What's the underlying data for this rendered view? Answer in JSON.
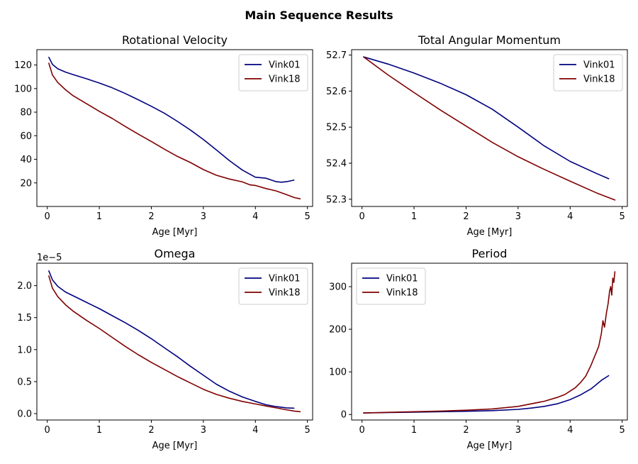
{
  "suptitle": "Main Sequence Results",
  "colors": {
    "Vink01": "#00007f",
    "Vink18": "#7f0000"
  },
  "chart_data": [
    {
      "type": "line",
      "title": "Rotational Velocity",
      "xlabel": "Age [Myr]",
      "ylabel": "",
      "xlim": [
        -0.2,
        5.1
      ],
      "ylim": [
        0,
        133
      ],
      "xticks": [
        0,
        1,
        2,
        3,
        4,
        5
      ],
      "yticks": [
        20,
        40,
        60,
        80,
        100,
        120
      ],
      "ytick_labels": [
        "20",
        "40",
        "60",
        "80",
        "100",
        "120"
      ],
      "offset_text": "",
      "legend_loc": "upper right",
      "series": [
        {
          "name": "Vink01",
          "x": [
            0.03,
            0.1,
            0.2,
            0.35,
            0.5,
            0.75,
            1.0,
            1.25,
            1.5,
            1.75,
            2.0,
            2.25,
            2.5,
            2.75,
            3.0,
            3.25,
            3.5,
            3.75,
            4.0,
            4.2,
            4.4,
            4.5,
            4.6,
            4.74
          ],
          "y": [
            126.5,
            120.5,
            116.8,
            114,
            111.8,
            108.4,
            104.7,
            100.6,
            95.8,
            90.5,
            85,
            79.1,
            72.2,
            64.9,
            56.8,
            48,
            38.9,
            30.9,
            24.8,
            24,
            21,
            20.6,
            21,
            22.3
          ]
        },
        {
          "name": "Vink18",
          "x": [
            0.03,
            0.1,
            0.2,
            0.35,
            0.5,
            0.75,
            1.0,
            1.25,
            1.5,
            1.75,
            2.0,
            2.25,
            2.5,
            2.75,
            3.0,
            3.25,
            3.5,
            3.75,
            3.9,
            4.0,
            4.2,
            4.4,
            4.6,
            4.75,
            4.86
          ],
          "y": [
            121.5,
            111.5,
            105.2,
            99,
            93.8,
            87.3,
            80.7,
            74.6,
            67.8,
            61.3,
            55.1,
            48.6,
            42.5,
            37.3,
            31.3,
            26.5,
            23.3,
            20.8,
            18.3,
            17.8,
            15.2,
            13.2,
            10,
            7.5,
            6.5
          ]
        }
      ]
    },
    {
      "type": "line",
      "title": "Total Angular Momentum",
      "xlabel": "Age [Myr]",
      "ylabel": "",
      "xlim": [
        -0.2,
        5.1
      ],
      "ylim": [
        52.28,
        52.715
      ],
      "xticks": [
        0,
        1,
        2,
        3,
        4,
        5
      ],
      "yticks": [
        52.3,
        52.4,
        52.5,
        52.6,
        52.7
      ],
      "ytick_labels": [
        "52.3",
        "52.4",
        "52.5",
        "52.6",
        "52.7"
      ],
      "offset_text": "",
      "legend_loc": "upper right",
      "series": [
        {
          "name": "Vink01",
          "x": [
            0.03,
            0.5,
            1.0,
            1.5,
            2.0,
            2.5,
            3.0,
            3.5,
            4.0,
            4.5,
            4.74
          ],
          "y": [
            52.695,
            52.675,
            52.65,
            52.622,
            52.59,
            52.55,
            52.5,
            52.448,
            52.405,
            52.372,
            52.357
          ]
        },
        {
          "name": "Vink18",
          "x": [
            0.03,
            0.5,
            1.0,
            1.5,
            2.0,
            2.5,
            3.0,
            3.5,
            4.0,
            4.5,
            4.86
          ],
          "y": [
            52.695,
            52.645,
            52.596,
            52.548,
            52.503,
            52.458,
            52.418,
            52.383,
            52.35,
            52.318,
            52.298
          ]
        }
      ]
    },
    {
      "type": "line",
      "title": "Omega",
      "xlabel": "Age [Myr]",
      "ylabel": "",
      "xlim": [
        -0.2,
        5.1
      ],
      "ylim": [
        -0.1,
        2.35
      ],
      "xticks": [
        0,
        1,
        2,
        3,
        4,
        5
      ],
      "yticks": [
        0.0,
        0.5,
        1.0,
        1.5,
        2.0
      ],
      "ytick_labels": [
        "0.0",
        "0.5",
        "1.0",
        "1.5",
        "2.0"
      ],
      "offset_text": "1e−5",
      "legend_loc": "upper right",
      "series": [
        {
          "name": "Vink01",
          "x": [
            0.03,
            0.1,
            0.2,
            0.35,
            0.5,
            0.75,
            1.0,
            1.25,
            1.5,
            1.75,
            2.0,
            2.25,
            2.5,
            2.75,
            3.0,
            3.25,
            3.5,
            3.75,
            4.0,
            4.2,
            4.4,
            4.6,
            4.74
          ],
          "y": [
            2.23,
            2.09,
            1.99,
            1.9,
            1.84,
            1.74,
            1.64,
            1.53,
            1.42,
            1.3,
            1.17,
            1.03,
            0.89,
            0.74,
            0.6,
            0.46,
            0.35,
            0.26,
            0.19,
            0.14,
            0.11,
            0.09,
            0.085
          ]
        },
        {
          "name": "Vink18",
          "x": [
            0.03,
            0.1,
            0.2,
            0.35,
            0.5,
            0.75,
            1.0,
            1.25,
            1.5,
            1.75,
            2.0,
            2.25,
            2.5,
            2.75,
            3.0,
            3.25,
            3.5,
            3.75,
            4.0,
            4.2,
            4.4,
            4.6,
            4.75,
            4.86
          ],
          "y": [
            2.15,
            1.96,
            1.83,
            1.7,
            1.6,
            1.46,
            1.33,
            1.19,
            1.05,
            0.92,
            0.8,
            0.69,
            0.58,
            0.48,
            0.38,
            0.3,
            0.24,
            0.19,
            0.15,
            0.12,
            0.09,
            0.06,
            0.04,
            0.03
          ]
        }
      ]
    },
    {
      "type": "line",
      "title": "Period",
      "xlabel": "Age [Myr]",
      "ylabel": "",
      "xlim": [
        -0.2,
        5.1
      ],
      "ylim": [
        -13,
        355
      ],
      "xticks": [
        0,
        1,
        2,
        3,
        4,
        5
      ],
      "yticks": [
        0,
        100,
        200,
        300
      ],
      "ytick_labels": [
        "0",
        "100",
        "200",
        "300"
      ],
      "offset_text": "",
      "legend_loc": "upper left",
      "series": [
        {
          "name": "Vink01",
          "x": [
            0.03,
            0.5,
            1.0,
            1.5,
            2.0,
            2.5,
            3.0,
            3.25,
            3.5,
            3.75,
            4.0,
            4.2,
            4.4,
            4.5,
            4.6,
            4.74
          ],
          "y": [
            3.5,
            4.5,
            5.5,
            6.5,
            7.5,
            9,
            12,
            15,
            19,
            25,
            35,
            46,
            60,
            70,
            80,
            91
          ]
        },
        {
          "name": "Vink18",
          "x": [
            0.03,
            0.5,
            1.0,
            1.5,
            2.0,
            2.5,
            3.0,
            3.25,
            3.5,
            3.75,
            3.9,
            4.0,
            4.1,
            4.2,
            4.3,
            4.4,
            4.45,
            4.5,
            4.55,
            4.6,
            4.63,
            4.66,
            4.7,
            4.73,
            4.76,
            4.78,
            4.8,
            4.82,
            4.84,
            4.86
          ],
          "y": [
            3.5,
            5,
            6.5,
            8,
            10,
            13,
            19,
            25,
            31,
            40,
            47,
            55,
            63,
            75,
            90,
            115,
            130,
            145,
            160,
            190,
            220,
            205,
            240,
            260,
            290,
            300,
            280,
            320,
            310,
            335
          ]
        }
      ]
    }
  ]
}
